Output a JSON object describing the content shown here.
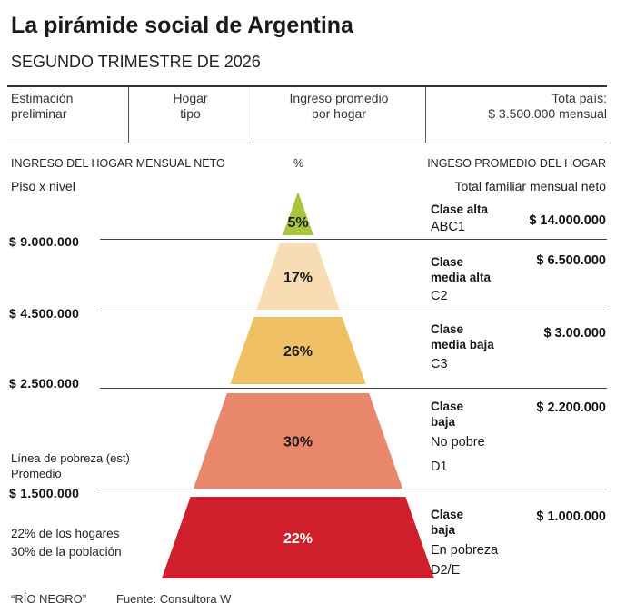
{
  "header": {
    "title": "La pirámide social de Argentina",
    "subtitle": "SEGUNDO TRIMESTRE DE 2026"
  },
  "info_row": {
    "col1_line1": "Estimación",
    "col1_line2": "preliminar",
    "col2_line1": "Hogar",
    "col2_line2": "tipo",
    "col3_line1": "Ingreso promedio",
    "col3_line2": "por hogar",
    "col4_line1": "Tota país:",
    "col4_line2": "$ 3.500.000 mensual"
  },
  "column_headers": {
    "left": "INGRESO DEL HOGAR MENSUAL NETO",
    "left_sub": "Piso x nivel",
    "middle": "%",
    "right": "INGESO PROMEDIO DEL HOGAR",
    "right_sub": "Total familiar mensual neto"
  },
  "thresholds": [
    "$ 9.000.000",
    "$ 4.500.000",
    "$ 2.500.000",
    "$ 1.500.000"
  ],
  "side_notes": {
    "poverty_line_1": "Línea de pobreza (est)",
    "poverty_line_2": "Promedio",
    "households": "22% de los hogares",
    "population": "30% de la población"
  },
  "classes": [
    {
      "name_lines": [
        "Clase alta"
      ],
      "code": "ABC1",
      "income": "$ 14.000.000"
    },
    {
      "name_lines": [
        "Clase",
        "media alta"
      ],
      "code": "C2",
      "income": "$ 6.500.000"
    },
    {
      "name_lines": [
        "Clase",
        "media baja"
      ],
      "code": "C3",
      "income": "$ 3.00.000"
    },
    {
      "name_lines": [
        "Clase",
        "baja",
        "No pobre"
      ],
      "code": "D1",
      "income": "$ 2.200.000"
    },
    {
      "name_lines": [
        "Clase",
        "baja",
        "En pobreza"
      ],
      "code": "D2/E",
      "income": "$ 1.000.000"
    }
  ],
  "chart_data": {
    "type": "bar",
    "categories": [
      "ABC1",
      "C2",
      "C3",
      "D1",
      "D2/E"
    ],
    "values": [
      5,
      17,
      26,
      30,
      22
    ],
    "value_labels": [
      "5%",
      "17%",
      "26%",
      "30%",
      "22%"
    ],
    "colors": [
      "#a8c43a",
      "#f7dcb4",
      "#f0c064",
      "#e8876a",
      "#cf1f2a"
    ],
    "label_colors": [
      "#1a1a1a",
      "#1a1a1a",
      "#1a1a1a",
      "#1a1a1a",
      "#ffffff"
    ]
  },
  "footer": {
    "source_label": "“RÍO NEGRO”",
    "source": "Fuente: Consultora W"
  }
}
